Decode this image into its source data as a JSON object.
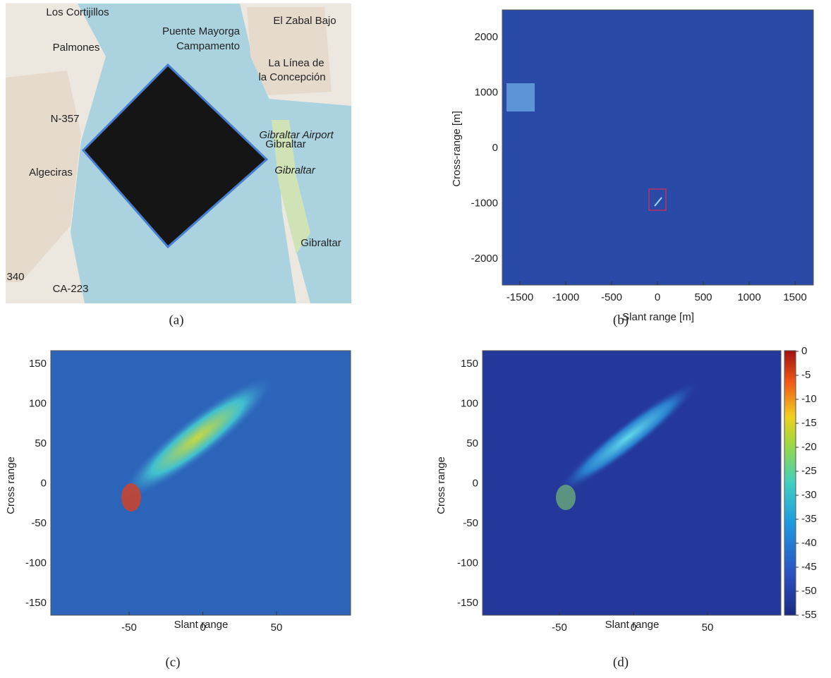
{
  "panels": [
    {
      "caption": "(a)",
      "map_labels": [
        "Los Cortijillos",
        "El Zabal Bajo",
        "Puente Mayorga",
        "Campamento",
        "Palmones",
        "La Línea de",
        "la Concepción",
        "N-357",
        "Gibraltar Airport",
        "Gibraltar",
        "Algeciras",
        "Gibraltar",
        "Gibraltar",
        "CA-223",
        "340"
      ]
    },
    {
      "caption": "(b)",
      "x_label": "Slant range [m]",
      "y_label": "Cross-range [m]",
      "xticks": [
        -1500,
        -1000,
        -500,
        0,
        500,
        1000,
        1500
      ],
      "yticks": [
        2000,
        1000,
        0,
        -1000,
        -2000
      ]
    },
    {
      "caption": "(c)",
      "x_label": "Slant range",
      "y_label": "Cross range",
      "xticks": [
        -50,
        0,
        50
      ],
      "yticks": [
        150,
        100,
        50,
        0,
        -50,
        -100,
        -150
      ]
    },
    {
      "caption": "(d)",
      "x_label": "Slant range",
      "y_label": "Cross range",
      "xticks": [
        -50,
        0,
        50
      ],
      "yticks": [
        150,
        100,
        50,
        0,
        -50,
        -100,
        -150
      ],
      "colorbar_ticks": [
        0,
        -5,
        -10,
        -15,
        -20,
        -25,
        -30,
        -35,
        -40,
        -45,
        -50,
        -55
      ]
    }
  ]
}
